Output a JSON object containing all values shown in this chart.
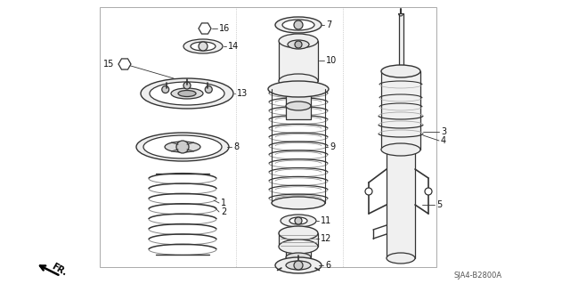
{
  "bg_color": "#ffffff",
  "line_color": "#333333",
  "light_line": "#666666",
  "label_color": "#111111",
  "label_fs": 7,
  "border": [
    0.175,
    0.03,
    0.63,
    0.93
  ],
  "diagram_code": "SJA4-B2800A"
}
